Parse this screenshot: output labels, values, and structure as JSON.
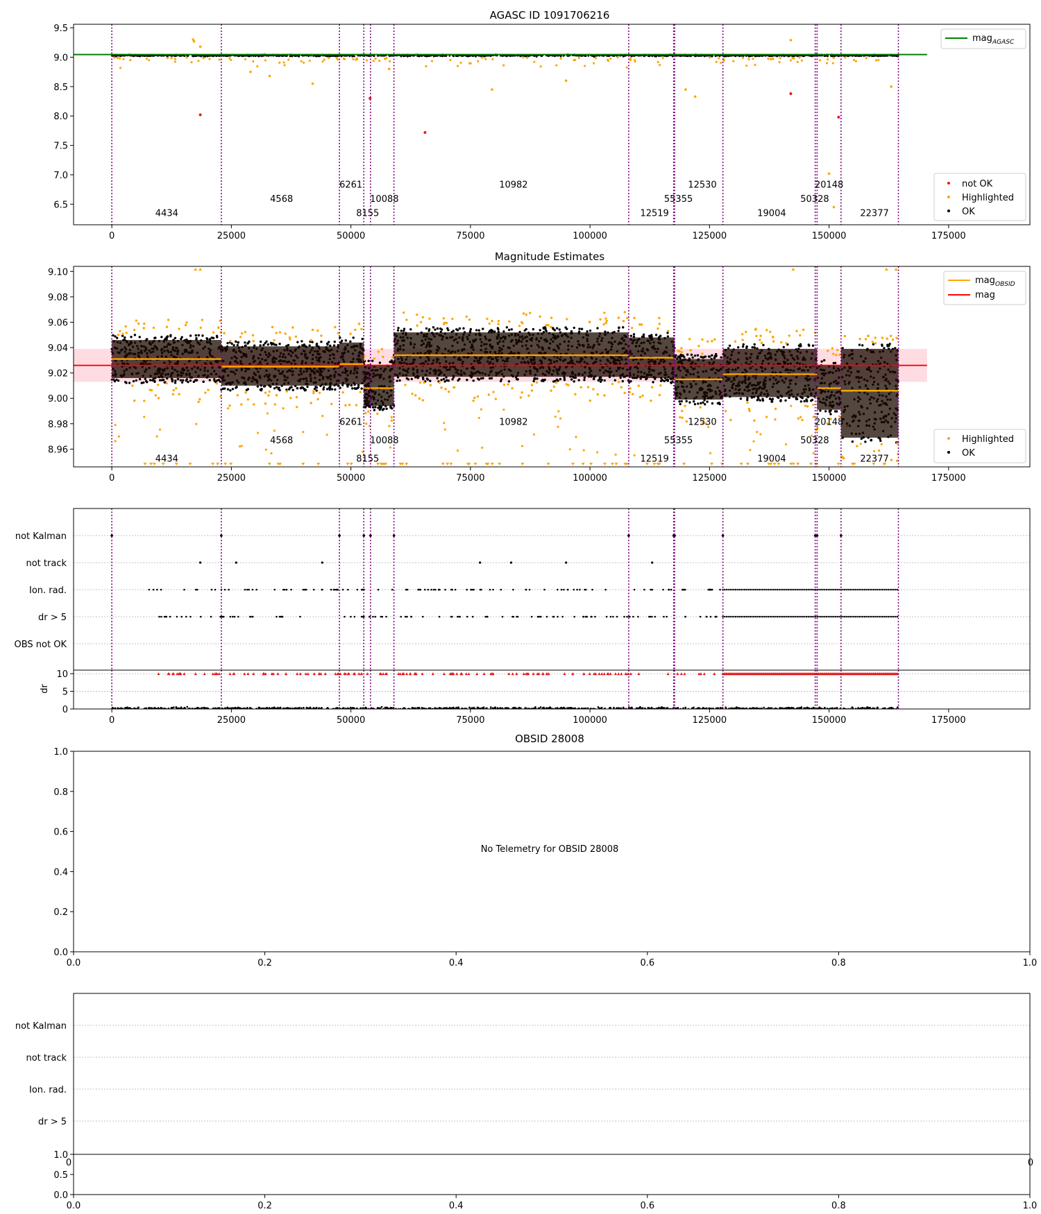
{
  "chart_data": [
    {
      "type": "scatter",
      "title": "AGASC ID 1091706216",
      "xlim": [
        -8000,
        192000
      ],
      "ylim": [
        6.15,
        9.56
      ],
      "xticks": [
        0,
        25000,
        50000,
        75000,
        100000,
        125000,
        150000,
        175000
      ],
      "xtick_labels": [
        "0",
        "25000",
        "50000",
        "75000",
        "100000",
        "125000",
        "150000",
        "175000"
      ],
      "yticks": [
        6.5,
        7.0,
        7.5,
        8.0,
        8.5,
        9.0,
        9.5
      ],
      "ytick_labels": [
        "6.5",
        "7.0",
        "7.5",
        "8.0",
        "8.5",
        "9.0",
        "9.5"
      ],
      "mag_agasc": 9.045,
      "legend_top": [
        {
          "label": "mag",
          "sub": "AGASC",
          "color": "#008000"
        }
      ],
      "legend_bottom": [
        {
          "label": "not OK",
          "color": "#e41a1c"
        },
        {
          "label": "Highlighted",
          "color": "#ffa500"
        },
        {
          "label": "OK",
          "color": "#000000"
        }
      ],
      "not_ok_points": [
        [
          18500,
          8.02
        ],
        [
          54000,
          8.3
        ],
        [
          65500,
          7.72
        ],
        [
          142000,
          8.38
        ],
        [
          152000,
          7.98
        ]
      ],
      "highlighted_points": [
        [
          17000,
          9.3
        ],
        [
          17200,
          9.27
        ],
        [
          18500,
          9.18
        ],
        [
          29000,
          8.75
        ],
        [
          33000,
          8.68
        ],
        [
          42000,
          8.55
        ],
        [
          58000,
          8.8
        ],
        [
          79500,
          8.45
        ],
        [
          95000,
          8.6
        ],
        [
          120000,
          8.45
        ],
        [
          122000,
          8.33
        ],
        [
          142000,
          9.29
        ],
        [
          150000,
          7.02
        ],
        [
          151000,
          6.45
        ],
        [
          163000,
          8.5
        ]
      ],
      "ok_band": {
        "y": 9.03,
        "halfwidth": 0.025
      },
      "obsid_labels": [
        {
          "text": "4434",
          "x": 11500,
          "y": 6.3
        },
        {
          "text": "4568",
          "x": 35500,
          "y": 6.54
        },
        {
          "text": "6261",
          "x": 50000,
          "y": 6.78
        },
        {
          "text": "8155",
          "x": 53500,
          "y": 6.3
        },
        {
          "text": "10088",
          "x": 57000,
          "y": 6.54
        },
        {
          "text": "10982",
          "x": 84000,
          "y": 6.78
        },
        {
          "text": "12519",
          "x": 113500,
          "y": 6.3
        },
        {
          "text": "55355",
          "x": 118500,
          "y": 6.54
        },
        {
          "text": "12530",
          "x": 123500,
          "y": 6.78
        },
        {
          "text": "19004",
          "x": 138000,
          "y": 6.3
        },
        {
          "text": "50328",
          "x": 147000,
          "y": 6.54
        },
        {
          "text": "20148",
          "x": 150000,
          "y": 6.78
        },
        {
          "text": "22377",
          "x": 159500,
          "y": 6.3
        }
      ]
    },
    {
      "type": "scatter",
      "title": "Magnitude Estimates",
      "xlim": [
        -8000,
        192000
      ],
      "ylim": [
        8.946,
        9.104
      ],
      "xticks": [
        0,
        25000,
        50000,
        75000,
        100000,
        125000,
        150000,
        175000
      ],
      "xtick_labels": [
        "0",
        "25000",
        "50000",
        "75000",
        "100000",
        "125000",
        "150000",
        "175000"
      ],
      "yticks": [
        8.96,
        8.98,
        9.0,
        9.02,
        9.04,
        9.06,
        9.08,
        9.1
      ],
      "ytick_labels": [
        "8.96",
        "8.98",
        "9.00",
        "9.02",
        "9.04",
        "9.06",
        "9.08",
        "9.10"
      ],
      "mag": 9.026,
      "mag_band": [
        9.013,
        9.039
      ],
      "legend_top": [
        {
          "label": "mag",
          "sub": "OBSID",
          "color": "#ffa500"
        },
        {
          "label": "mag",
          "sub": "",
          "color": "#ff0000"
        }
      ],
      "legend_bottom": [
        {
          "label": "Highlighted",
          "color": "#ffa500"
        },
        {
          "label": "OK",
          "color": "#000000"
        }
      ],
      "segments": [
        {
          "x0": 0,
          "x1": 22900,
          "mean": 9.031,
          "lo": 9.012,
          "hi": 9.05
        },
        {
          "x0": 22900,
          "x1": 47600,
          "mean": 9.025,
          "lo": 9.006,
          "hi": 9.045
        },
        {
          "x0": 47600,
          "x1": 52700,
          "mean": 9.027,
          "lo": 9.007,
          "hi": 9.048
        },
        {
          "x0": 52700,
          "x1": 54100,
          "mean": 9.008,
          "lo": 8.99,
          "hi": 9.03
        },
        {
          "x0": 54100,
          "x1": 59000,
          "mean": 9.008,
          "lo": 8.99,
          "hi": 9.03
        },
        {
          "x0": 59000,
          "x1": 108100,
          "mean": 9.034,
          "lo": 9.013,
          "hi": 9.056
        },
        {
          "x0": 108100,
          "x1": 117700,
          "mean": 9.032,
          "lo": 9.012,
          "hi": 9.052
        },
        {
          "x0": 117700,
          "x1": 127800,
          "mean": 9.015,
          "lo": 8.995,
          "hi": 9.035
        },
        {
          "x0": 127800,
          "x1": 147500,
          "mean": 9.019,
          "lo": 8.997,
          "hi": 9.043
        },
        {
          "x0": 147500,
          "x1": 152500,
          "mean": 9.008,
          "lo": 8.987,
          "hi": 9.03
        },
        {
          "x0": 152500,
          "x1": 164500,
          "mean": 9.006,
          "lo": 8.965,
          "hi": 9.043
        }
      ],
      "obsid_labels": [
        {
          "text": "4434",
          "x": 11500,
          "y": 8.95
        },
        {
          "text": "4568",
          "x": 35500,
          "y": 8.9645
        },
        {
          "text": "6261",
          "x": 50000,
          "y": 8.979
        },
        {
          "text": "8155",
          "x": 53500,
          "y": 8.95
        },
        {
          "text": "10088",
          "x": 57000,
          "y": 8.9645
        },
        {
          "text": "10982",
          "x": 84000,
          "y": 8.979
        },
        {
          "text": "12519",
          "x": 113500,
          "y": 8.95
        },
        {
          "text": "55355",
          "x": 118500,
          "y": 8.9645
        },
        {
          "text": "12530",
          "x": 123500,
          "y": 8.979
        },
        {
          "text": "19004",
          "x": 138000,
          "y": 8.95
        },
        {
          "text": "50328",
          "x": 147000,
          "y": 8.9645
        },
        {
          "text": "20148",
          "x": 150000,
          "y": 8.979
        },
        {
          "text": "22377",
          "x": 159500,
          "y": 8.95
        }
      ]
    },
    {
      "type": "scatter",
      "xlim": [
        -8000,
        192000
      ],
      "xticks": [
        0,
        25000,
        50000,
        75000,
        100000,
        125000,
        150000,
        175000
      ],
      "xtick_labels": [
        "0",
        "25000",
        "50000",
        "75000",
        "100000",
        "125000",
        "150000",
        "175000"
      ],
      "flag_rows": [
        "not Kalman",
        "not track",
        "Ion. rad.",
        "dr > 5",
        "OBS not OK"
      ],
      "ylabel_dr": "dr",
      "dr_ylim": [
        0,
        11
      ],
      "dr_yticks": [
        0,
        5,
        10
      ],
      "dr_ytick_labels": [
        "0",
        "5",
        "10"
      ],
      "not_track_x": [
        18500,
        26000,
        44000,
        77000,
        83500,
        95000,
        113000
      ]
    },
    {
      "type": "scatter",
      "title": "OBSID 28008",
      "message": "No Telemetry for OBSID 28008",
      "xlim": [
        0,
        1
      ],
      "ylim": [
        0,
        1
      ],
      "xticks": [
        0,
        0.2,
        0.4,
        0.6,
        0.8,
        1.0
      ],
      "xtick_labels": [
        "0.0",
        "0.2",
        "0.4",
        "0.6",
        "0.8",
        "1.0"
      ],
      "yticks": [
        0,
        0.2,
        0.4,
        0.6,
        0.8,
        1.0
      ],
      "ytick_labels": [
        "0.0",
        "0.2",
        "0.4",
        "0.6",
        "0.8",
        "1.0"
      ]
    },
    {
      "type": "scatter",
      "flag_rows": [
        "not Kalman",
        "not track",
        "Ion. rad.",
        "dr > 5"
      ],
      "xlim": [
        0,
        1
      ],
      "ylim": [
        0,
        1
      ],
      "xticks": [
        0,
        0.2,
        0.4,
        0.6,
        0.8,
        1.0
      ],
      "xtick_labels": [
        "0.0",
        "0.2",
        "0.4",
        "0.6",
        "0.8",
        "1.0"
      ],
      "yticks": [
        0,
        0.5,
        1.0
      ],
      "ytick_labels": [
        "0.0",
        "0.5",
        "1.0"
      ],
      "clipped_left": "0",
      "clipped_right": "0"
    }
  ],
  "obsid_boundaries": [
    0,
    22900,
    47600,
    52700,
    54100,
    59000,
    108100,
    117500,
    117700,
    127800,
    147100,
    147500,
    152500,
    164500
  ],
  "colors": {
    "boundary": "#800080",
    "ok": "#000000",
    "highlighted": "#ffa500",
    "not_ok": "#e41a1c",
    "agasc_line": "#008000",
    "mag_line": "#ff0000",
    "mag_band": "#ffc0cb",
    "obsid_mean": "#ffa500",
    "grid": "#b0b0b0"
  }
}
